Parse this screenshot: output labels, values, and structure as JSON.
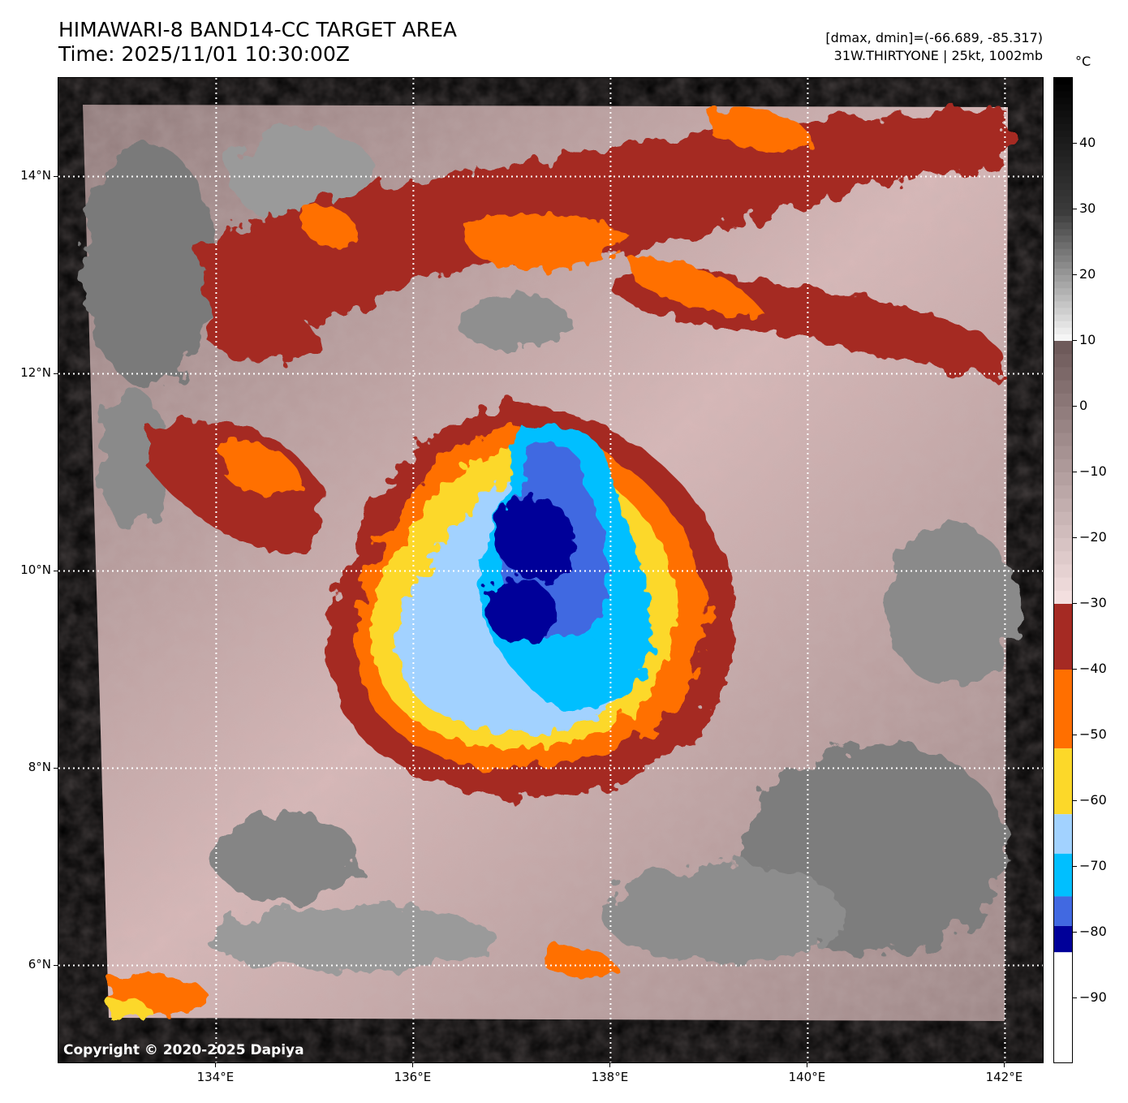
{
  "header": {
    "title_line1": "HIMAWARI-8 BAND14-CC TARGET AREA",
    "title_line2": "Time: 2025/11/01 10:30:00Z",
    "info_line1": "[dmax, dmin]=(-66.689, -85.317)",
    "info_line2": "31W.THIRTYONE | 25kt, 1002mb"
  },
  "map": {
    "lat_ticks": [
      "14°N",
      "12°N",
      "10°N",
      "8°N",
      "6°N"
    ],
    "lon_ticks": [
      "134°E",
      "136°E",
      "138°E",
      "140°E",
      "142°E"
    ],
    "lon_range": [
      132.4,
      142.4
    ],
    "lat_range": [
      5.0,
      15.0
    ],
    "copyright": "Copyright © 2020-2025 Dapiya",
    "storm_center": {
      "lon": 137.1,
      "lat": 9.9
    },
    "colors": {
      "dark_red": "#a52a23",
      "orange": "#ff6f00",
      "yellow": "#fcd829",
      "light_blue": "#a2d2ff",
      "cyan": "#00bfff",
      "royal_blue": "#4169e1",
      "navy": "#000099",
      "pink": "#e9cfcf",
      "brown": "#9b8080",
      "gray": "#7a7a7a"
    }
  },
  "colorbar": {
    "unit": "°C",
    "ticks": [
      "40",
      "30",
      "20",
      "10",
      "0",
      "−10",
      "−20",
      "−30",
      "−40",
      "−50",
      "−60",
      "−70",
      "−80",
      "−90"
    ],
    "range": [
      -100,
      50
    ]
  }
}
